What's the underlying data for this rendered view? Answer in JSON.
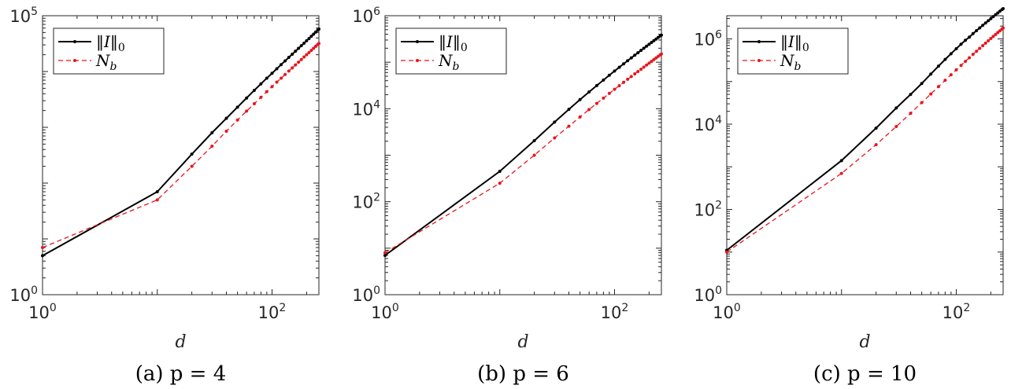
{
  "chart_data": [
    {
      "type": "line",
      "caption": "(a) p = 4",
      "xlabel": "d",
      "x_scale": "log",
      "y_scale": "log",
      "xlim": [
        1,
        256
      ],
      "ylim": [
        1,
        100000
      ],
      "xticks": [
        {
          "base": "10",
          "exp": "0",
          "value": 1
        },
        {
          "base": "10",
          "exp": "2",
          "value": 100
        }
      ],
      "yticks": [
        {
          "base": "10",
          "exp": "0",
          "value": 1
        },
        {
          "base": "10",
          "exp": "5",
          "value": 100000
        }
      ],
      "legend_position": "top-left",
      "series": [
        {
          "name": "||I||0",
          "color": "#000000",
          "style": "solid",
          "x": [
            1,
            10,
            20,
            30,
            40,
            50,
            60,
            70,
            80,
            90,
            100,
            110,
            120,
            130,
            140,
            150,
            160,
            170,
            180,
            190,
            200,
            210,
            220,
            230,
            240,
            250,
            256
          ],
          "y": [
            5,
            70,
            330,
            800,
            1450,
            2300,
            3350,
            4600,
            6000,
            7600,
            9300,
            11200,
            13300,
            15500,
            17900,
            20400,
            23100,
            26000,
            29000,
            32200,
            35600,
            39100,
            42800,
            46700,
            50800,
            55000,
            57600
          ]
        },
        {
          "name": "Nb",
          "color": "#e8141c",
          "style": "dashed",
          "x": [
            1,
            10,
            20,
            30,
            40,
            50,
            60,
            70,
            80,
            90,
            100,
            110,
            120,
            130,
            140,
            150,
            160,
            170,
            180,
            190,
            200,
            210,
            220,
            230,
            240,
            250,
            256
          ],
          "y": [
            7,
            50,
            200,
            460,
            850,
            1350,
            1950,
            2650,
            3450,
            4350,
            5350,
            6450,
            7600,
            8850,
            10200,
            11600,
            13100,
            14700,
            16400,
            18200,
            20000,
            21900,
            23900,
            26000,
            28200,
            30400,
            31800
          ]
        }
      ]
    },
    {
      "type": "line",
      "caption": "(b) p = 6",
      "xlabel": "d",
      "x_scale": "log",
      "y_scale": "log",
      "xlim": [
        1,
        256
      ],
      "ylim": [
        1,
        1000000
      ],
      "xticks": [
        {
          "base": "10",
          "exp": "0",
          "value": 1
        },
        {
          "base": "10",
          "exp": "2",
          "value": 100
        }
      ],
      "yticks": [
        {
          "base": "10",
          "exp": "0",
          "value": 1
        },
        {
          "base": "10",
          "exp": "2",
          "value": 100
        },
        {
          "base": "10",
          "exp": "4",
          "value": 10000
        },
        {
          "base": "10",
          "exp": "6",
          "value": 1000000
        }
      ],
      "legend_position": "top-left",
      "series": [
        {
          "name": "||I||0",
          "color": "#000000",
          "style": "solid",
          "x": [
            1,
            10,
            20,
            30,
            40,
            50,
            60,
            70,
            80,
            90,
            100,
            110,
            120,
            130,
            140,
            150,
            160,
            170,
            180,
            190,
            200,
            210,
            220,
            230,
            240,
            250,
            256
          ],
          "y": [
            7,
            450,
            2050,
            5150,
            9700,
            15700,
            22900,
            31500,
            41300,
            52400,
            64600,
            77900,
            92300,
            107700,
            124200,
            141600,
            160000,
            179400,
            199700,
            221000,
            243100,
            266100,
            290100,
            314900,
            340700,
            367300,
            383600
          ]
        },
        {
          "name": "Nb",
          "color": "#e8141c",
          "style": "dashed",
          "x": [
            1,
            10,
            20,
            30,
            40,
            50,
            60,
            70,
            80,
            90,
            100,
            110,
            120,
            130,
            140,
            150,
            160,
            170,
            180,
            190,
            200,
            210,
            220,
            230,
            240,
            250,
            256
          ],
          "y": [
            8,
            250,
            1000,
            2350,
            4200,
            6650,
            9600,
            13000,
            16900,
            21300,
            26100,
            31300,
            36900,
            42900,
            49300,
            56100,
            63200,
            70700,
            78600,
            86800,
            95400,
            104300,
            113600,
            123200,
            133200,
            143500,
            149800
          ]
        }
      ]
    },
    {
      "type": "line",
      "caption": "(c) p = 10",
      "xlabel": "d",
      "x_scale": "log",
      "y_scale": "log",
      "xlim": [
        1,
        256
      ],
      "ylim": [
        1,
        3500000
      ],
      "xticks": [
        {
          "base": "10",
          "exp": "0",
          "value": 1
        },
        {
          "base": "10",
          "exp": "2",
          "value": 100
        }
      ],
      "yticks": [
        {
          "base": "10",
          "exp": "0",
          "value": 1
        },
        {
          "base": "10",
          "exp": "2",
          "value": 100
        },
        {
          "base": "10",
          "exp": "4",
          "value": 10000
        },
        {
          "base": "10",
          "exp": "6",
          "value": 1000000
        }
      ],
      "legend_position": "top-left",
      "series": [
        {
          "name": "||I||0",
          "color": "#000000",
          "style": "solid",
          "x": [
            1,
            10,
            20,
            30,
            40,
            50,
            60,
            70,
            80,
            90,
            100,
            110,
            120,
            130,
            140,
            150,
            160,
            170,
            180,
            190,
            200,
            210,
            220,
            230,
            240,
            250,
            256
          ],
          "y": [
            11,
            1400,
            8100,
            24000,
            50000,
            90000,
            150000,
            230000,
            330000,
            450000,
            590000,
            750000,
            930000,
            1100000,
            1330000,
            1560000,
            1810000,
            2080000,
            2360000,
            2670000,
            2990000,
            3330000,
            3690000,
            4060000,
            4460000,
            4870000,
            5130000
          ]
        },
        {
          "name": "Nb",
          "color": "#e8141c",
          "style": "dashed",
          "x": [
            1,
            10,
            20,
            30,
            40,
            50,
            60,
            70,
            80,
            90,
            100,
            110,
            120,
            130,
            140,
            150,
            160,
            170,
            180,
            190,
            200,
            210,
            220,
            230,
            240,
            250,
            256
          ],
          "y": [
            10,
            700,
            3300,
            8800,
            18000,
            32000,
            51000,
            76000,
            107000,
            144000,
            188000,
            239000,
            297000,
            362000,
            434000,
            514000,
            600000,
            694000,
            795000,
            904000,
            1020000,
            1140000,
            1270000,
            1410000,
            1550000,
            1700000,
            1800000
          ]
        }
      ]
    }
  ]
}
